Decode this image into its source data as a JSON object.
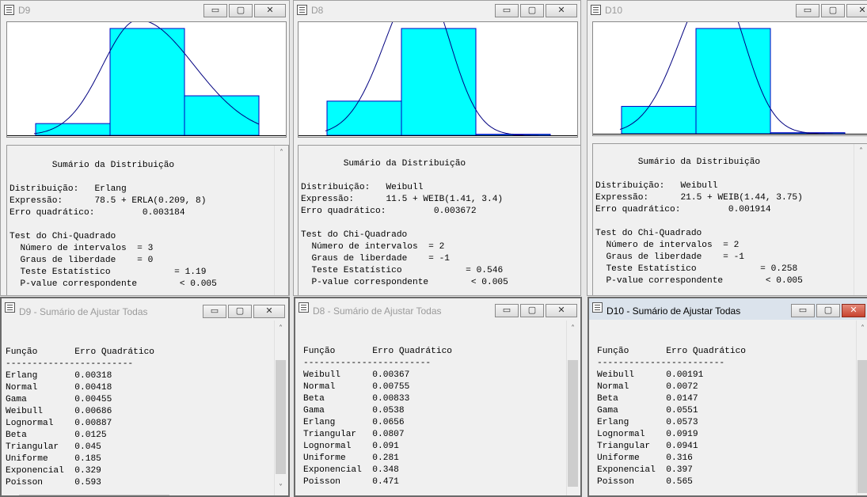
{
  "window_buttons": {
    "minimize": "▭",
    "maximize": "▢",
    "close": "✕"
  },
  "dist": [
    {
      "id": "D9",
      "title": "D9",
      "chart_data": {
        "type": "bar",
        "bars": [
          {
            "height": 0.11
          },
          {
            "height": 1.0
          },
          {
            "height": 0.37
          }
        ],
        "curve": "erlang"
      },
      "summary": {
        "heading": "Sumário da Distribuição",
        "dist_label": "Distribuição:",
        "dist_value": "Erlang",
        "expr_label": "Expressão:",
        "expr_value": "78.5 + ERLA(0.209, 8)",
        "err_label": "Erro quadrático:",
        "err_value": "0.003184",
        "chi_title": "Test do Chi-Quadrado",
        "n_label": "Número de intervalos",
        "n_value": "= 3",
        "gl_label": "Graus de liberdade",
        "gl_value": "= 0",
        "te_label": "Teste Estatístico",
        "te_value": "= 1.19",
        "pv_label": "P-value correspondente",
        "pv_value": "< 0.005"
      },
      "fit": {
        "title": "D9 - Sumário de Ajustar Todas",
        "col_func": "Função",
        "col_err": "Erro Quadrático",
        "rule": "------------------------",
        "rows": [
          {
            "name": "Erlang",
            "value": "0.00318"
          },
          {
            "name": "Normal",
            "value": "0.00418"
          },
          {
            "name": "Gama",
            "value": "0.00455"
          },
          {
            "name": "Weibull",
            "value": "0.00686"
          },
          {
            "name": "Lognormal",
            "value": "0.00887"
          },
          {
            "name": "Beta",
            "value": "0.0125"
          },
          {
            "name": "Triangular",
            "value": "0.045"
          },
          {
            "name": "Uniforme",
            "value": "0.185"
          },
          {
            "name": "Exponencial",
            "value": "0.329"
          },
          {
            "name": "Poisson",
            "value": "0.593"
          }
        ]
      }
    },
    {
      "id": "D8",
      "title": "D8",
      "chart_data": {
        "type": "bar",
        "bars": [
          {
            "height": 0.32
          },
          {
            "height": 1.0
          },
          {
            "height": 0.01
          }
        ],
        "curve": "weibull"
      },
      "summary": {
        "heading": "Sumário da Distribuição",
        "dist_label": "Distribuição:",
        "dist_value": "Weibull",
        "expr_label": "Expressão:",
        "expr_value": "11.5 + WEIB(1.41, 3.4)",
        "err_label": "Erro quadrático:",
        "err_value": "0.003672",
        "chi_title": "Test do Chi-Quadrado",
        "n_label": "Número de intervalos",
        "n_value": "= 2",
        "gl_label": "Graus de liberdade",
        "gl_value": "= -1",
        "te_label": "Teste Estatístico",
        "te_value": "= 0.546",
        "pv_label": "P-value correspondente",
        "pv_value": "< 0.005"
      },
      "fit": {
        "title": "D8 - Sumário de Ajustar Todas",
        "col_func": "Função",
        "col_err": "Erro Quadrático",
        "rule": "------------------------",
        "rows": [
          {
            "name": "Weibull",
            "value": "0.00367"
          },
          {
            "name": "Normal",
            "value": "0.00755"
          },
          {
            "name": "Beta",
            "value": "0.00833"
          },
          {
            "name": "Gama",
            "value": "0.0538"
          },
          {
            "name": "Erlang",
            "value": "0.0656"
          },
          {
            "name": "Triangular",
            "value": "0.0807"
          },
          {
            "name": "Lognormal",
            "value": "0.091"
          },
          {
            "name": "Uniforme",
            "value": "0.281"
          },
          {
            "name": "Exponencial",
            "value": "0.348"
          },
          {
            "name": "Poisson",
            "value": "0.471"
          }
        ]
      }
    },
    {
      "id": "D10",
      "title": "D10",
      "chart_data": {
        "type": "bar",
        "bars": [
          {
            "height": 0.26
          },
          {
            "height": 1.0
          },
          {
            "height": 0.01
          }
        ],
        "curve": "weibull"
      },
      "summary": {
        "heading": "Sumário da Distribuição",
        "dist_label": "Distribuição:",
        "dist_value": "Weibull",
        "expr_label": "Expressão:",
        "expr_value": "21.5 + WEIB(1.44, 3.75)",
        "err_label": "Erro quadrático:",
        "err_value": "0.001914",
        "chi_title": "Test do Chi-Quadrado",
        "n_label": "Número de intervalos",
        "n_value": "= 2",
        "gl_label": "Graus de liberdade",
        "gl_value": "= -1",
        "te_label": "Teste Estatístico",
        "te_value": "= 0.258",
        "pv_label": "P-value correspondente",
        "pv_value": "< 0.005"
      },
      "fit": {
        "title": "D10 - Sumário de Ajustar Todas",
        "col_func": "Função",
        "col_err": "Erro Quadrático",
        "rule": "------------------------",
        "rows": [
          {
            "name": "Weibull",
            "value": "0.00191"
          },
          {
            "name": "Normal",
            "value": "0.0072"
          },
          {
            "name": "Beta",
            "value": "0.0147"
          },
          {
            "name": "Gama",
            "value": "0.0551"
          },
          {
            "name": "Erlang",
            "value": "0.0573"
          },
          {
            "name": "Lognormal",
            "value": "0.0919"
          },
          {
            "name": "Triangular",
            "value": "0.0941"
          },
          {
            "name": "Uniforme",
            "value": "0.316"
          },
          {
            "name": "Exponencial",
            "value": "0.397"
          },
          {
            "name": "Poisson",
            "value": "0.565"
          }
        ]
      }
    }
  ]
}
